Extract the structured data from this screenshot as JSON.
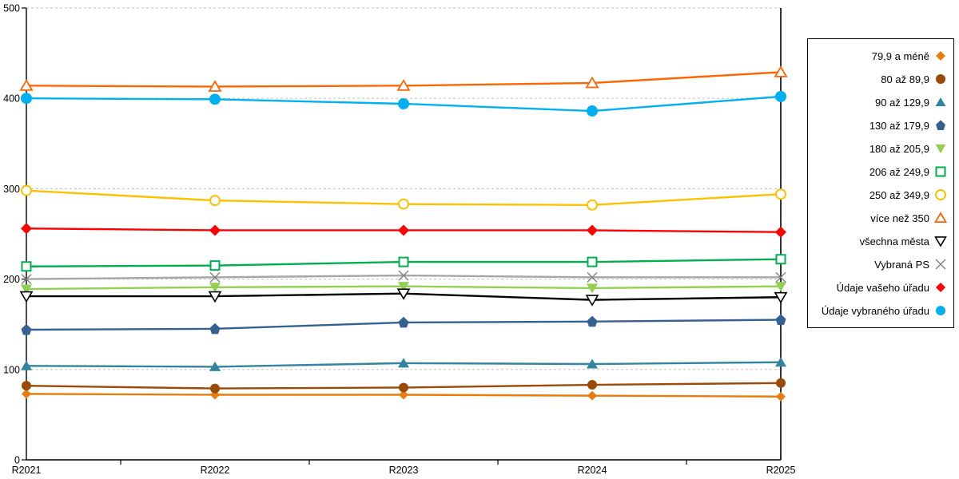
{
  "chart_data": {
    "type": "line",
    "title": "",
    "categories": [
      "R2021",
      "R2022",
      "R2023",
      "R2024",
      "R2025"
    ],
    "ylim": [
      0,
      500
    ],
    "ytick_step": 100,
    "grid": "horizontal-dashed",
    "legend_position": "right",
    "series": [
      {
        "name": "79,9 a méně",
        "color": "#E87D0E",
        "marker": "diamond",
        "size": 6,
        "values": [
          73,
          72,
          72,
          71,
          70
        ]
      },
      {
        "name": "80 až 89,9",
        "color": "#9C4A08",
        "marker": "circle",
        "size": 6,
        "values": [
          82,
          79,
          80,
          83,
          85
        ]
      },
      {
        "name": "90 až 129,9",
        "color": "#31859C",
        "marker": "triangle",
        "size": 6.5,
        "values": [
          104,
          103,
          107,
          106,
          108
        ]
      },
      {
        "name": "130 až 179,9",
        "color": "#376092",
        "marker": "pentagon",
        "size": 6.5,
        "values": [
          144,
          145,
          152,
          153,
          155
        ]
      },
      {
        "name": "180 až 205,9",
        "color": "#92D050",
        "marker": "triangle-down",
        "size": 6.5,
        "values": [
          189,
          191,
          192,
          190,
          192
        ]
      },
      {
        "name": "206 až 249,9",
        "color": "#00B050",
        "marker": "square-open",
        "size": 5.5,
        "values": [
          214,
          215,
          219,
          219,
          222
        ]
      },
      {
        "name": "250 až 349,9",
        "color": "#FFC000",
        "marker": "circle-open",
        "size": 6,
        "values": [
          298,
          287,
          283,
          282,
          294
        ]
      },
      {
        "name": "více než 350",
        "color": "#FF6600",
        "marker": "triangle-open",
        "size": 6.5,
        "values": [
          414,
          413,
          414,
          417,
          429
        ]
      },
      {
        "name": "všechna města",
        "color": "#000000",
        "marker": "triangle-down-open",
        "size": 6.5,
        "values": [
          181,
          181,
          184,
          177,
          180
        ]
      },
      {
        "name": "Vybraná PS",
        "color": "#A6A6A6",
        "marker": "x",
        "marker_color": "#7F7F7F",
        "size": 6,
        "values": [
          200,
          202,
          204,
          202,
          202
        ]
      },
      {
        "name": "Údaje vašeho úřadu",
        "color": "#FF0000",
        "marker": "diamond",
        "size": 7,
        "values": [
          256,
          254,
          254,
          254,
          252
        ]
      },
      {
        "name": "Údaje vybraného úřadu",
        "color": "#00B0F0",
        "marker": "circle",
        "size": 7,
        "values": [
          400,
          399,
          394,
          386,
          402
        ]
      }
    ]
  },
  "style": {
    "grid_color": "#C9C9C9",
    "axis_color": "#000000",
    "background": "#FFFFFF",
    "legend_border": "#000000"
  }
}
